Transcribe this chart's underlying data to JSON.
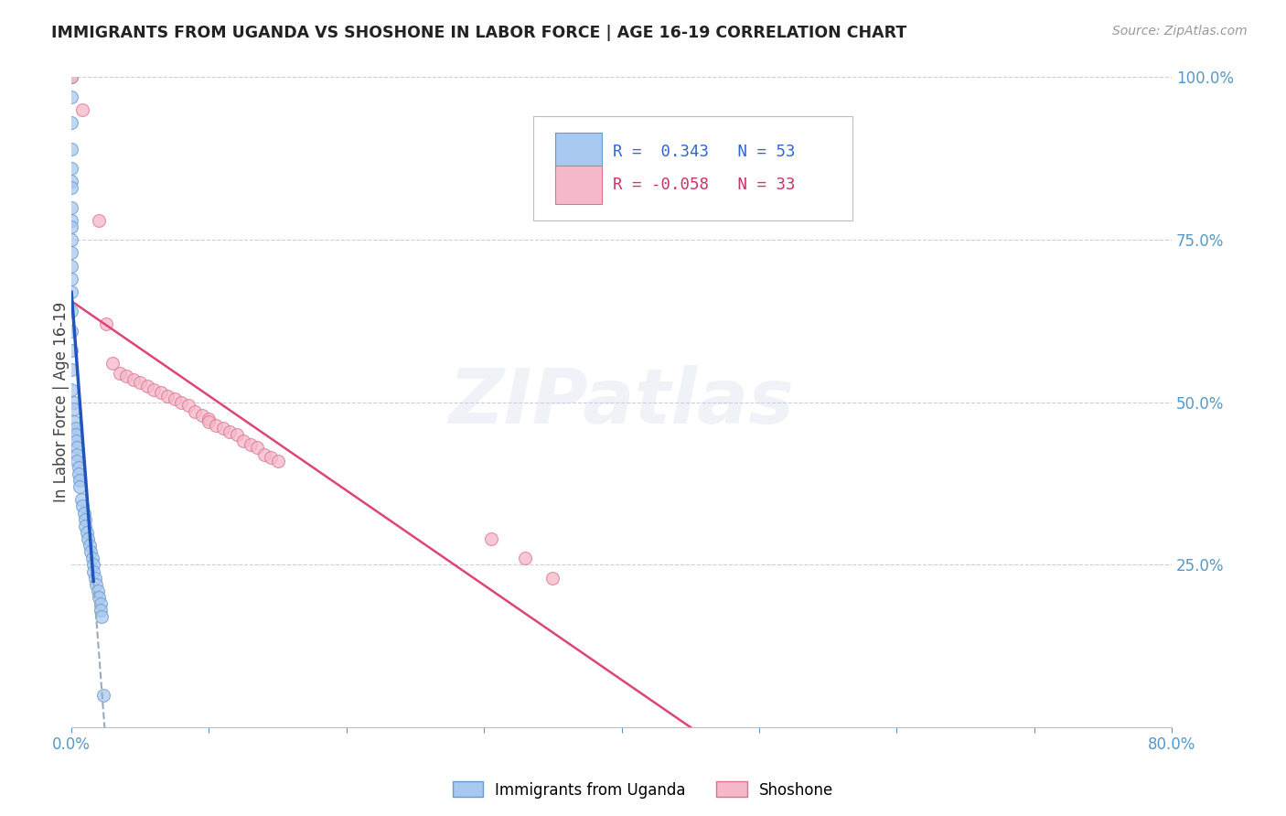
{
  "title": "IMMIGRANTS FROM UGANDA VS SHOSHONE IN LABOR FORCE | AGE 16-19 CORRELATION CHART",
  "source": "Source: ZipAtlas.com",
  "ylabel": "In Labor Force | Age 16-19",
  "xlim": [
    0.0,
    0.8
  ],
  "ylim": [
    0.0,
    1.0
  ],
  "uganda_color": "#a8c8f0",
  "shoshone_color": "#f5b8c8",
  "uganda_edge": "#6699cc",
  "shoshone_edge": "#e07090",
  "trend_blue": "#2255bb",
  "trend_pink": "#dd4477",
  "trend_dashed_color": "#99aabb",
  "legend_R_uganda": "0.343",
  "legend_N_uganda": "53",
  "legend_R_shoshone": "-0.058",
  "legend_N_shoshone": "33",
  "watermark": "ZIPatlas",
  "background_color": "#ffffff",
  "grid_color": "#ccccdd",
  "uganda_x": [
    0.0,
    0.0,
    0.0,
    0.0,
    0.0,
    0.0,
    0.0,
    0.0,
    0.0,
    0.0,
    0.0,
    0.0,
    0.0,
    0.0,
    0.0,
    0.0,
    0.0,
    0.0,
    0.0,
    0.0,
    0.002,
    0.002,
    0.002,
    0.003,
    0.003,
    0.003,
    0.004,
    0.004,
    0.004,
    0.005,
    0.005,
    0.006,
    0.006,
    0.007,
    0.008,
    0.009,
    0.01,
    0.01,
    0.011,
    0.012,
    0.013,
    0.014,
    0.015,
    0.016,
    0.016,
    0.017,
    0.018,
    0.019,
    0.02,
    0.021,
    0.021,
    0.022,
    0.023
  ],
  "uganda_y": [
    1.0,
    0.97,
    0.93,
    0.89,
    0.86,
    0.84,
    0.83,
    0.8,
    0.78,
    0.77,
    0.75,
    0.73,
    0.71,
    0.69,
    0.67,
    0.64,
    0.61,
    0.58,
    0.55,
    0.52,
    0.5,
    0.49,
    0.47,
    0.46,
    0.45,
    0.44,
    0.43,
    0.42,
    0.41,
    0.4,
    0.39,
    0.38,
    0.37,
    0.35,
    0.34,
    0.33,
    0.32,
    0.31,
    0.3,
    0.29,
    0.28,
    0.27,
    0.26,
    0.25,
    0.24,
    0.23,
    0.22,
    0.21,
    0.2,
    0.19,
    0.18,
    0.17,
    0.05
  ],
  "shoshone_x": [
    0.0,
    0.008,
    0.02,
    0.025,
    0.03,
    0.035,
    0.04,
    0.045,
    0.05,
    0.055,
    0.06,
    0.065,
    0.07,
    0.075,
    0.08,
    0.085,
    0.09,
    0.095,
    0.1,
    0.1,
    0.105,
    0.11,
    0.115,
    0.12,
    0.125,
    0.13,
    0.135,
    0.14,
    0.145,
    0.15,
    0.305,
    0.33,
    0.35
  ],
  "shoshone_y": [
    1.0,
    0.95,
    0.78,
    0.62,
    0.56,
    0.545,
    0.54,
    0.535,
    0.53,
    0.525,
    0.52,
    0.515,
    0.51,
    0.505,
    0.5,
    0.495,
    0.485,
    0.48,
    0.475,
    0.47,
    0.465,
    0.46,
    0.455,
    0.45,
    0.44,
    0.435,
    0.43,
    0.42,
    0.415,
    0.41,
    0.29,
    0.26,
    0.23
  ]
}
